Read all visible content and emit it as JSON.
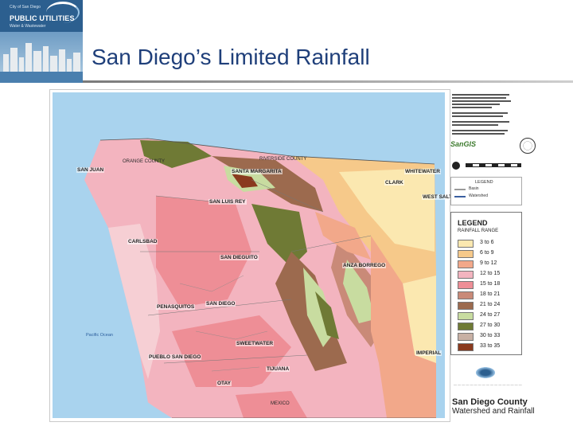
{
  "logo": {
    "city_text": "City of San Diego",
    "brand": "PUBLIC UTILITIES",
    "subtitle": "Water & Wastewater"
  },
  "slide": {
    "title": "San Diego’s Limited Rainfall"
  },
  "map": {
    "area_labels": [
      {
        "key": "san_juan",
        "text": "SAN JUAN",
        "style": "b"
      },
      {
        "key": "santa_margarita",
        "text": "SANTA MARGARITA",
        "style": "b"
      },
      {
        "key": "san_luis_rey",
        "text": "SAN LUIS REY",
        "style": "b"
      },
      {
        "key": "whitewater",
        "text": "WHITEWATER",
        "style": "b"
      },
      {
        "key": "clark",
        "text": "CLARK",
        "style": "b"
      },
      {
        "key": "west_salton",
        "text": "WEST SALTON",
        "style": "b"
      },
      {
        "key": "carlsbad",
        "text": "CARLSBAD",
        "style": "b"
      },
      {
        "key": "san_dieguito",
        "text": "SAN DIEGUITO",
        "style": "b"
      },
      {
        "key": "anza_borrego",
        "text": "ANZA BORREGO",
        "style": "b"
      },
      {
        "key": "penasquitos",
        "text": "PENASQUITOS",
        "style": "b"
      },
      {
        "key": "san_diego",
        "text": "SAN DIEGO",
        "style": "b"
      },
      {
        "key": "pueblo_san_diego",
        "text": "PUEBLO SAN DIEGO",
        "style": "b"
      },
      {
        "key": "sweetwater",
        "text": "SWEETWATER",
        "style": "b"
      },
      {
        "key": "tijuana",
        "text": "TIJUANA",
        "style": "b"
      },
      {
        "key": "imperial",
        "text": "IMPERIAL",
        "style": "b"
      },
      {
        "key": "otay",
        "text": "OTAY",
        "style": "b"
      },
      {
        "key": "pacific_ocean",
        "text": "Pacific Ocean",
        "style": "ocean"
      },
      {
        "key": "riverside_county",
        "text": "RIVERSIDE COUNTY",
        "style": "s"
      },
      {
        "key": "orange_county",
        "text": "ORANGE COUNTY",
        "style": "s"
      },
      {
        "key": "mexico",
        "text": "MEXICO",
        "style": "s"
      }
    ]
  },
  "sidebar": {
    "sangis": "SanGIS",
    "legend_small": {
      "title": "LEGEND",
      "items": [
        "Basin",
        "Watershed"
      ]
    }
  },
  "legend": {
    "title": "LEGEND",
    "subtitle": "RAINFALL RANGE",
    "ranges": [
      {
        "label": "3 to 6",
        "color": "#fbe8b0"
      },
      {
        "label": "6 to 9",
        "color": "#f6c98a"
      },
      {
        "label": "9 to 12",
        "color": "#f2a88a"
      },
      {
        "label": "12 to 15",
        "color": "#f3b4bf"
      },
      {
        "label": "15 to 18",
        "color": "#ee8e96"
      },
      {
        "label": "18 to 21",
        "color": "#c98a78"
      },
      {
        "label": "21 to 24",
        "color": "#9c6a4e"
      },
      {
        "label": "24 to 27",
        "color": "#c8dca0"
      },
      {
        "label": "27 to 30",
        "color": "#6f7a35"
      },
      {
        "label": "30 to 33",
        "color": "#c8b0a4"
      },
      {
        "label": "33 to 35",
        "color": "#8a3a1e"
      }
    ]
  },
  "footer": {
    "county": "San Diego County",
    "watershed": "Watershed and Rainfall"
  },
  "colors": {
    "title": "#1f3f7a",
    "ocean": "#a9d3ee"
  }
}
